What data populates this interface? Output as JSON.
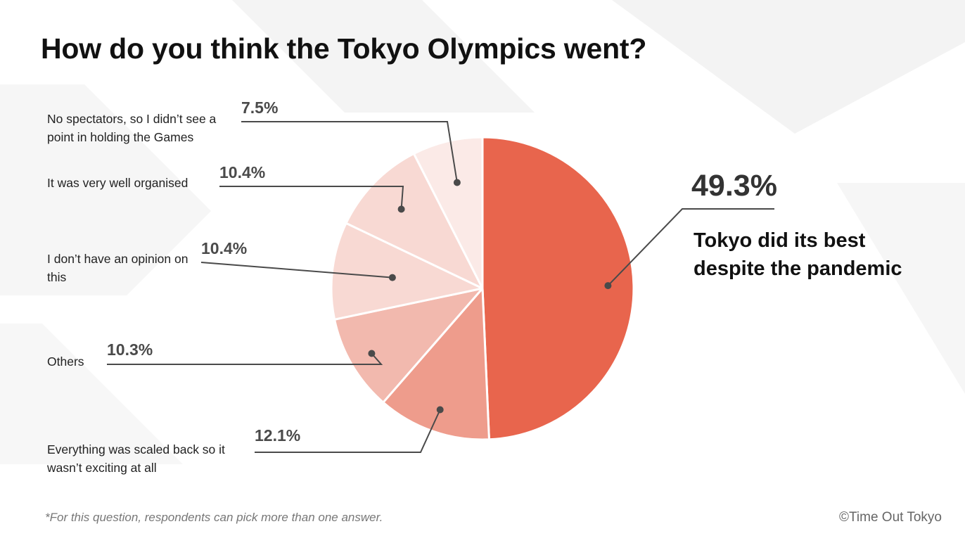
{
  "title": "How do you think the Tokyo Olympics went?",
  "footnote": "*For this question, respondents can pick more than one answer.",
  "credit": "©Time Out Tokyo",
  "chart_data": {
    "type": "pie",
    "title": "How do you think the Tokyo Olympics went?",
    "slices": [
      {
        "label": "Tokyo did its best despite the pandemic",
        "value": 49.3,
        "value_label": "49.3%",
        "color": "#e8654d"
      },
      {
        "label": "Everything was scaled back so it wasn’t exciting at all",
        "value": 12.1,
        "value_label": "12.1%",
        "color": "#ee9c8c"
      },
      {
        "label": "Others",
        "value": 10.3,
        "value_label": "10.3%",
        "color": "#f2b9ae"
      },
      {
        "label": "I don’t have an opinion on this",
        "value": 10.4,
        "value_label": "10.4%",
        "color": "#f8d9d3"
      },
      {
        "label": "It was very well organised",
        "value": 10.4,
        "value_label": "10.4%",
        "color": "#f8d9d3"
      },
      {
        "label": "No spectators, so I didn’t see a point in holding the Games",
        "value": 7.5,
        "value_label": "7.5%",
        "color": "#fbeae7"
      }
    ]
  }
}
